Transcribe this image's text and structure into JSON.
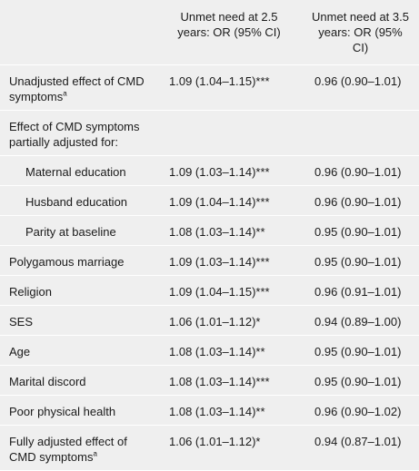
{
  "header": {
    "columns": [
      "Unmet need at 2.5 years: OR (95% CI)",
      "Unmet need at 3.5 years: OR (95% CI)"
    ]
  },
  "rows": [
    {
      "label": "Unadjusted effect of CMD symptoms",
      "sup": "a",
      "values": [
        "1.09 (1.04–1.15)***",
        "0.96 (0.90–1.01)"
      ]
    },
    {
      "label": "Effect of CMD symptoms partially adjusted for:",
      "subrows": [
        {
          "label": "Maternal education",
          "values": [
            "1.09 (1.03–1.14)***",
            "0.96 (0.90–1.01)"
          ]
        },
        {
          "label": "Husband education",
          "values": [
            "1.09 (1.04–1.14)***",
            "0.96 (0.90–1.01)"
          ]
        },
        {
          "label": "Parity at baseline",
          "values": [
            "1.08 (1.03–1.14)**",
            "0.95 (0.90–1.01)"
          ]
        }
      ]
    },
    {
      "label": "Polygamous marriage",
      "values": [
        "1.09 (1.03–1.14)***",
        "0.95 (0.90–1.01)"
      ]
    },
    {
      "label": "Religion",
      "values": [
        "1.09 (1.04–1.15)***",
        "0.96 (0.91–1.01)"
      ]
    },
    {
      "label": "SES",
      "values": [
        "1.06 (1.01–1.12)*",
        "0.94 (0.89–1.00)"
      ]
    },
    {
      "label": "Age",
      "values": [
        "1.08 (1.03–1.14)**",
        "0.95 (0.90–1.01)"
      ]
    },
    {
      "label": "Marital discord",
      "values": [
        "1.08 (1.03–1.14)***",
        "0.95 (0.90–1.01)"
      ]
    },
    {
      "label": "Poor physical health",
      "values": [
        "1.08 (1.03–1.14)**",
        "0.96 (0.90–1.02)"
      ]
    },
    {
      "label": "Fully adjusted effect of CMD symptoms",
      "sup": "a",
      "values": [
        "1.06 (1.01–1.12)*",
        "0.94 (0.87–1.01)"
      ]
    }
  ]
}
